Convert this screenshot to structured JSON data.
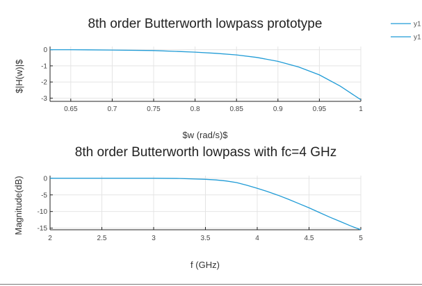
{
  "colors": {
    "series": "#1f9bd6"
  },
  "legend": {
    "placement": "top-right",
    "entries": [
      "y1",
      "y1"
    ]
  },
  "chart_data": [
    {
      "type": "line",
      "title": "8th order Butterworth lowpass prototype",
      "xlabel": "$w (rad/s)$",
      "ylabel": "$|H(w)|$",
      "xlim": [
        0.625,
        1.0
      ],
      "ylim": [
        -3.2,
        0.2
      ],
      "xticks": [
        0.65,
        0.7,
        0.75,
        0.8,
        0.85,
        0.9,
        0.95,
        1
      ],
      "xtick_labels": [
        "0.65",
        "0.7",
        "0.75",
        "0.8",
        "0.85",
        "0.9",
        "0.95",
        "1"
      ],
      "yticks": [
        0,
        -1,
        -2,
        -3
      ],
      "ytick_labels": [
        "0",
        "-1",
        "-2",
        "-3"
      ],
      "grid": true,
      "series": [
        {
          "x": [
            0.625,
            0.65,
            0.7,
            0.75,
            0.8,
            0.825,
            0.85,
            0.875,
            0.9,
            0.925,
            0.95,
            0.975,
            1.0
          ],
          "y": [
            0,
            0,
            -0.02,
            -0.05,
            -0.15,
            -0.22,
            -0.32,
            -0.48,
            -0.72,
            -1.07,
            -1.56,
            -2.25,
            -3.1
          ]
        }
      ]
    },
    {
      "type": "line",
      "title": "8th order Butterworth lowpass with fc=4 GHz",
      "xlabel": "f (GHz)",
      "ylabel": "Magnitude(dB)",
      "xlim": [
        2,
        5
      ],
      "ylim": [
        -15.5,
        0.8
      ],
      "xticks": [
        2,
        2.5,
        3,
        3.5,
        4,
        4.5,
        5
      ],
      "xtick_labels": [
        "2",
        "2.5",
        "3",
        "3.5",
        "4",
        "4.5",
        "5"
      ],
      "yticks": [
        0,
        -5,
        -10,
        -15
      ],
      "ytick_labels": [
        "0",
        "-5",
        "-10",
        "-15"
      ],
      "grid": true,
      "series": [
        {
          "x": [
            2,
            2.5,
            3,
            3.25,
            3.5,
            3.6,
            3.7,
            3.8,
            3.9,
            4.0,
            4.1,
            4.2,
            4.3,
            4.4,
            4.5,
            4.6,
            4.7,
            4.8,
            4.9,
            5.0
          ],
          "y": [
            0,
            0,
            0,
            -0.05,
            -0.3,
            -0.5,
            -0.8,
            -1.3,
            -2.1,
            -3.0,
            -4.0,
            -5.1,
            -6.3,
            -7.6,
            -8.9,
            -10.3,
            -11.7,
            -13.0,
            -14.3,
            -15.5
          ]
        }
      ]
    }
  ]
}
